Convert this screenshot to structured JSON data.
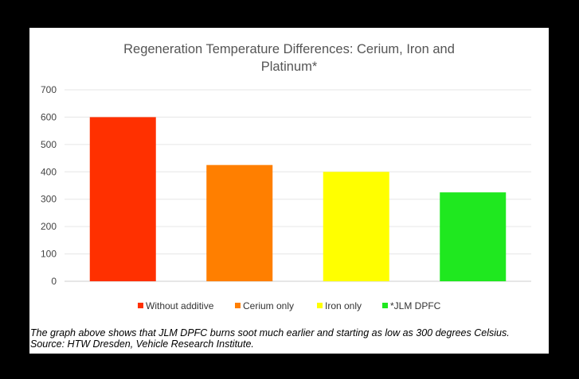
{
  "chart_data": {
    "type": "bar",
    "title_lines": [
      "Regeneration Temperature Differences: Cerium, Iron and",
      "Platinum*"
    ],
    "categories": [
      "Without additive",
      "Cerium only",
      "Iron only",
      "*JLM DPFC"
    ],
    "values": [
      600,
      425,
      400,
      325
    ],
    "colors": [
      "#ff3000",
      "#ff7f00",
      "#ffff00",
      "#1fe81f"
    ],
    "ylim": [
      0,
      700
    ],
    "yticks": [
      0,
      100,
      200,
      300,
      400,
      500,
      600,
      700
    ],
    "grid": true,
    "legend_position": "bottom",
    "xlabel": "",
    "ylabel": ""
  },
  "caption": {
    "line1": "The graph above shows that JLM DPFC burns soot much earlier and starting as low as 300 degrees Celsius.",
    "line2": "Source: HTW Dresden, Vehicle Research Institute."
  }
}
